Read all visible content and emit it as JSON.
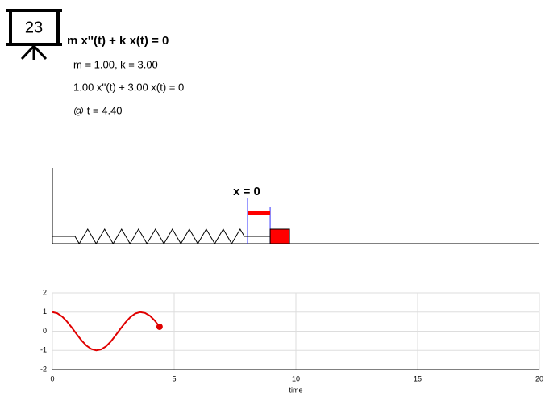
{
  "badge": "23",
  "equation": {
    "title": "m x''(t) + k x(t) = 0",
    "params": "m = 1.00, k = 3.00",
    "instance": "1.00 x''(t) + 3.00 x(t) = 0",
    "time": "@ t = 4.40"
  },
  "scene": {
    "origin_label": "x = 0"
  },
  "chart_data": {
    "type": "line",
    "xlabel": "time",
    "x": [
      0,
      0.2,
      0.4,
      0.6,
      0.8,
      1.0,
      1.2,
      1.4,
      1.6,
      1.8,
      2.0,
      2.2,
      2.4,
      2.6,
      2.8,
      3.0,
      3.2,
      3.4,
      3.6,
      3.8,
      4.0,
      4.2,
      4.4
    ],
    "series": [
      {
        "color": "#e00000",
        "values": [
          1,
          0.941,
          0.769,
          0.506,
          0.184,
          -0.161,
          -0.486,
          -0.754,
          -0.932,
          -1.0,
          -0.95,
          -0.791,
          -0.535,
          -0.208,
          0.137,
          0.464,
          0.738,
          0.925,
          0.999,
          0.956,
          0.813,
          0.562,
          0.234
        ]
      }
    ],
    "xlim": [
      0,
      20
    ],
    "xticks": [
      0,
      5,
      10,
      15,
      20
    ],
    "ylim": [
      -2,
      2
    ],
    "yticks": [
      -2,
      -1,
      0,
      1,
      2
    ],
    "grid": true
  }
}
